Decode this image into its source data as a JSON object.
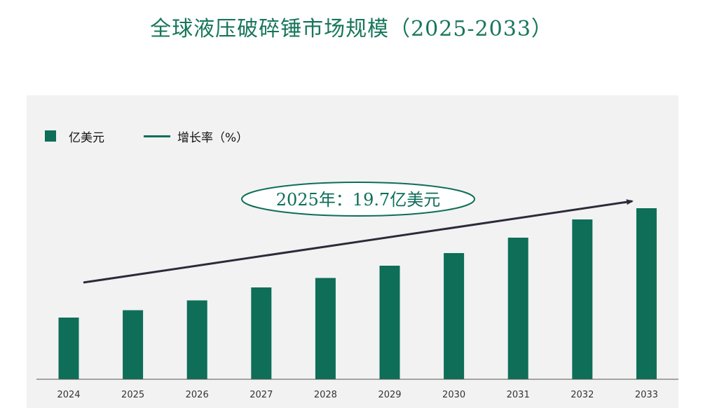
{
  "chart_data": {
    "type": "bar",
    "title": "全球液压破碎锤市场规模（2025-2033）",
    "categories": [
      "2024",
      "2025",
      "2026",
      "2027",
      "2028",
      "2029",
      "2030",
      "2031",
      "2032",
      "2033"
    ],
    "series": [
      {
        "name": "亿美元",
        "values": [
          17.6,
          19.7,
          22.5,
          26.2,
          28.9,
          32.4,
          36.0,
          40.4,
          45.6,
          48.8
        ],
        "color": "#0e6e58"
      }
    ],
    "trend_legend": "增长率（%）",
    "trend_color": "#2b2b3a",
    "annotation": "2025年：19.7亿美元",
    "ylim": [
      0,
      50
    ],
    "grid": false,
    "legend_position": "top-left",
    "xlabel": "",
    "ylabel": ""
  }
}
